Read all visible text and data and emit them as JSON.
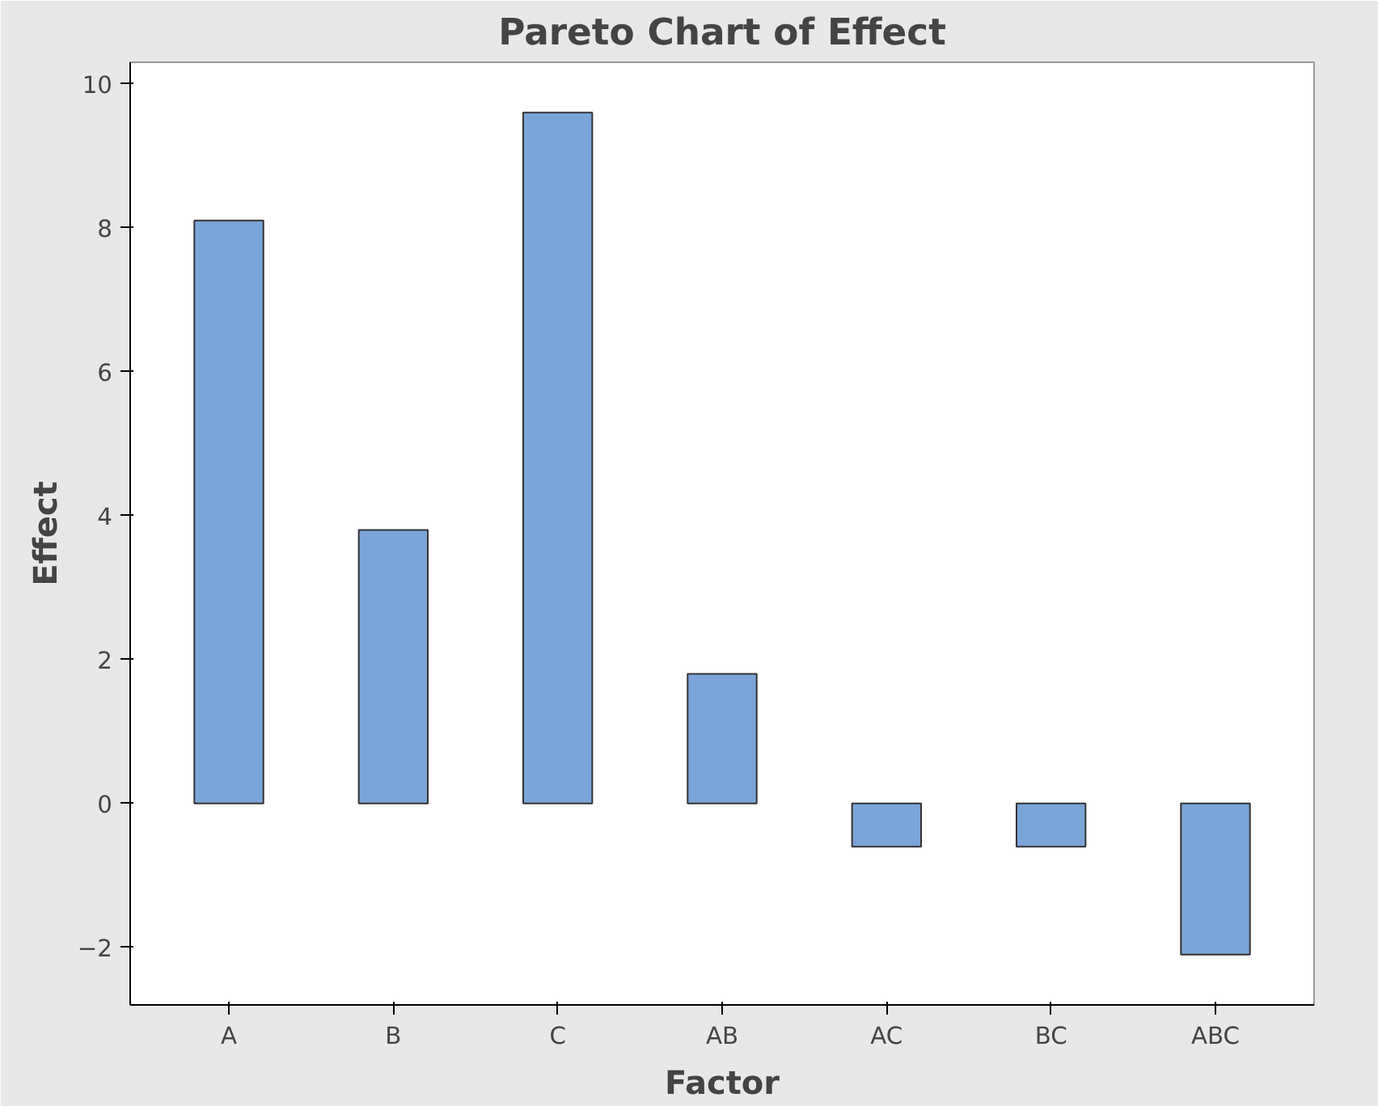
{
  "chart_data": {
    "type": "bar",
    "title": "Pareto Chart of Effect",
    "xlabel": "Factor",
    "ylabel": "Effect",
    "categories": [
      "A",
      "B",
      "C",
      "AB",
      "AC",
      "BC",
      "ABC"
    ],
    "values": [
      8.1,
      3.8,
      9.6,
      1.8,
      -0.6,
      -0.6,
      -2.1
    ],
    "color": "#7ba4d9",
    "ylim": [
      -2.8,
      10.3
    ],
    "yticks": [
      -2,
      0,
      2,
      4,
      6,
      8,
      10
    ],
    "grid": false
  }
}
